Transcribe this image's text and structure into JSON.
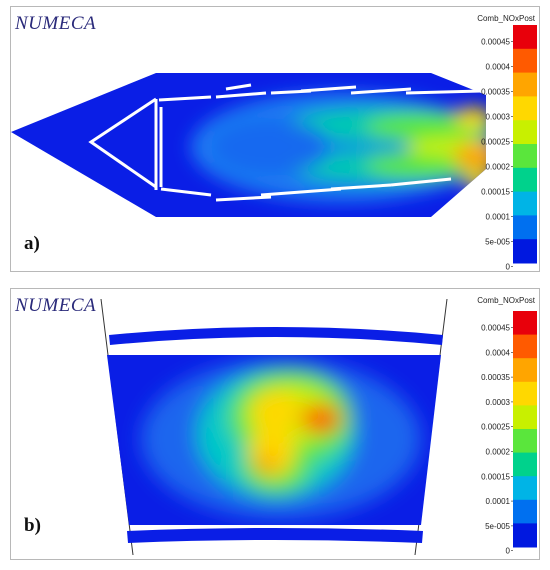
{
  "panel_a": {
    "logo": "NUMECA",
    "colorbar_title": "Comb_NOxPost",
    "label": "a)"
  },
  "panel_b": {
    "logo": "NUMECA",
    "colorbar_title": "Comb_NOxPost",
    "label": "b)"
  },
  "colorbar": {
    "ticks": [
      "0.00045",
      "0.0004",
      "0.00035",
      "0.0003",
      "0.00025",
      "0.0002",
      "0.00015",
      "0.0001",
      "5e-005",
      "0"
    ],
    "colors": [
      "#e8000b",
      "#ff5a00",
      "#ffa500",
      "#ffd800",
      "#c8f000",
      "#5ae63c",
      "#00d28c",
      "#00b4e6",
      "#0070f0",
      "#0018e0"
    ]
  },
  "colors": {
    "domain_blue": "#0a1ee6",
    "wall_white": "#ffffff"
  }
}
